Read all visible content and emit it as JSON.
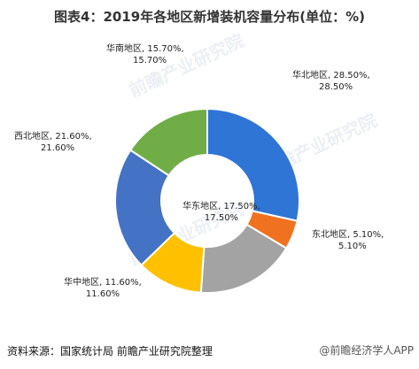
{
  "title": "图表4：2019年各地区新增装机容量分布(单位：%)",
  "source": "资料来源：国家统计局 前瞻产业研究院整理",
  "credit": "@前瞻经济学人APP",
  "watermark": "前瞻产业研究院",
  "chart_data": {
    "type": "donut",
    "title": "图表4：2019年各地区新增装机容量分布(单位：%)",
    "unit": "%",
    "slices": [
      {
        "name": "华北地区",
        "value": 28.5,
        "label_line1": "华北地区, 28.50%,",
        "label_line2": "28.50%",
        "color": "#2e75d6"
      },
      {
        "name": "东北地区",
        "value": 5.1,
        "label_line1": "东北地区, 5.10%,",
        "label_line2": "5.10%",
        "color": "#f07220"
      },
      {
        "name": "华东地区",
        "value": 17.5,
        "label_line1": "华东地区, 17.50%,",
        "label_line2": "17.50%",
        "color": "#a3a3a3"
      },
      {
        "name": "华中地区",
        "value": 11.6,
        "label_line1": "华中地区, 11.60%,",
        "label_line2": "11.60%",
        "color": "#ffc000"
      },
      {
        "name": "西北地区",
        "value": 21.6,
        "label_line1": "西北地区, 21.60%,",
        "label_line2": "21.60%",
        "color": "#4472c4"
      },
      {
        "name": "华南地区",
        "value": 15.7,
        "label_line1": "华南地区, 15.70%,",
        "label_line2": "15.70%",
        "color": "#70ad47"
      }
    ]
  }
}
